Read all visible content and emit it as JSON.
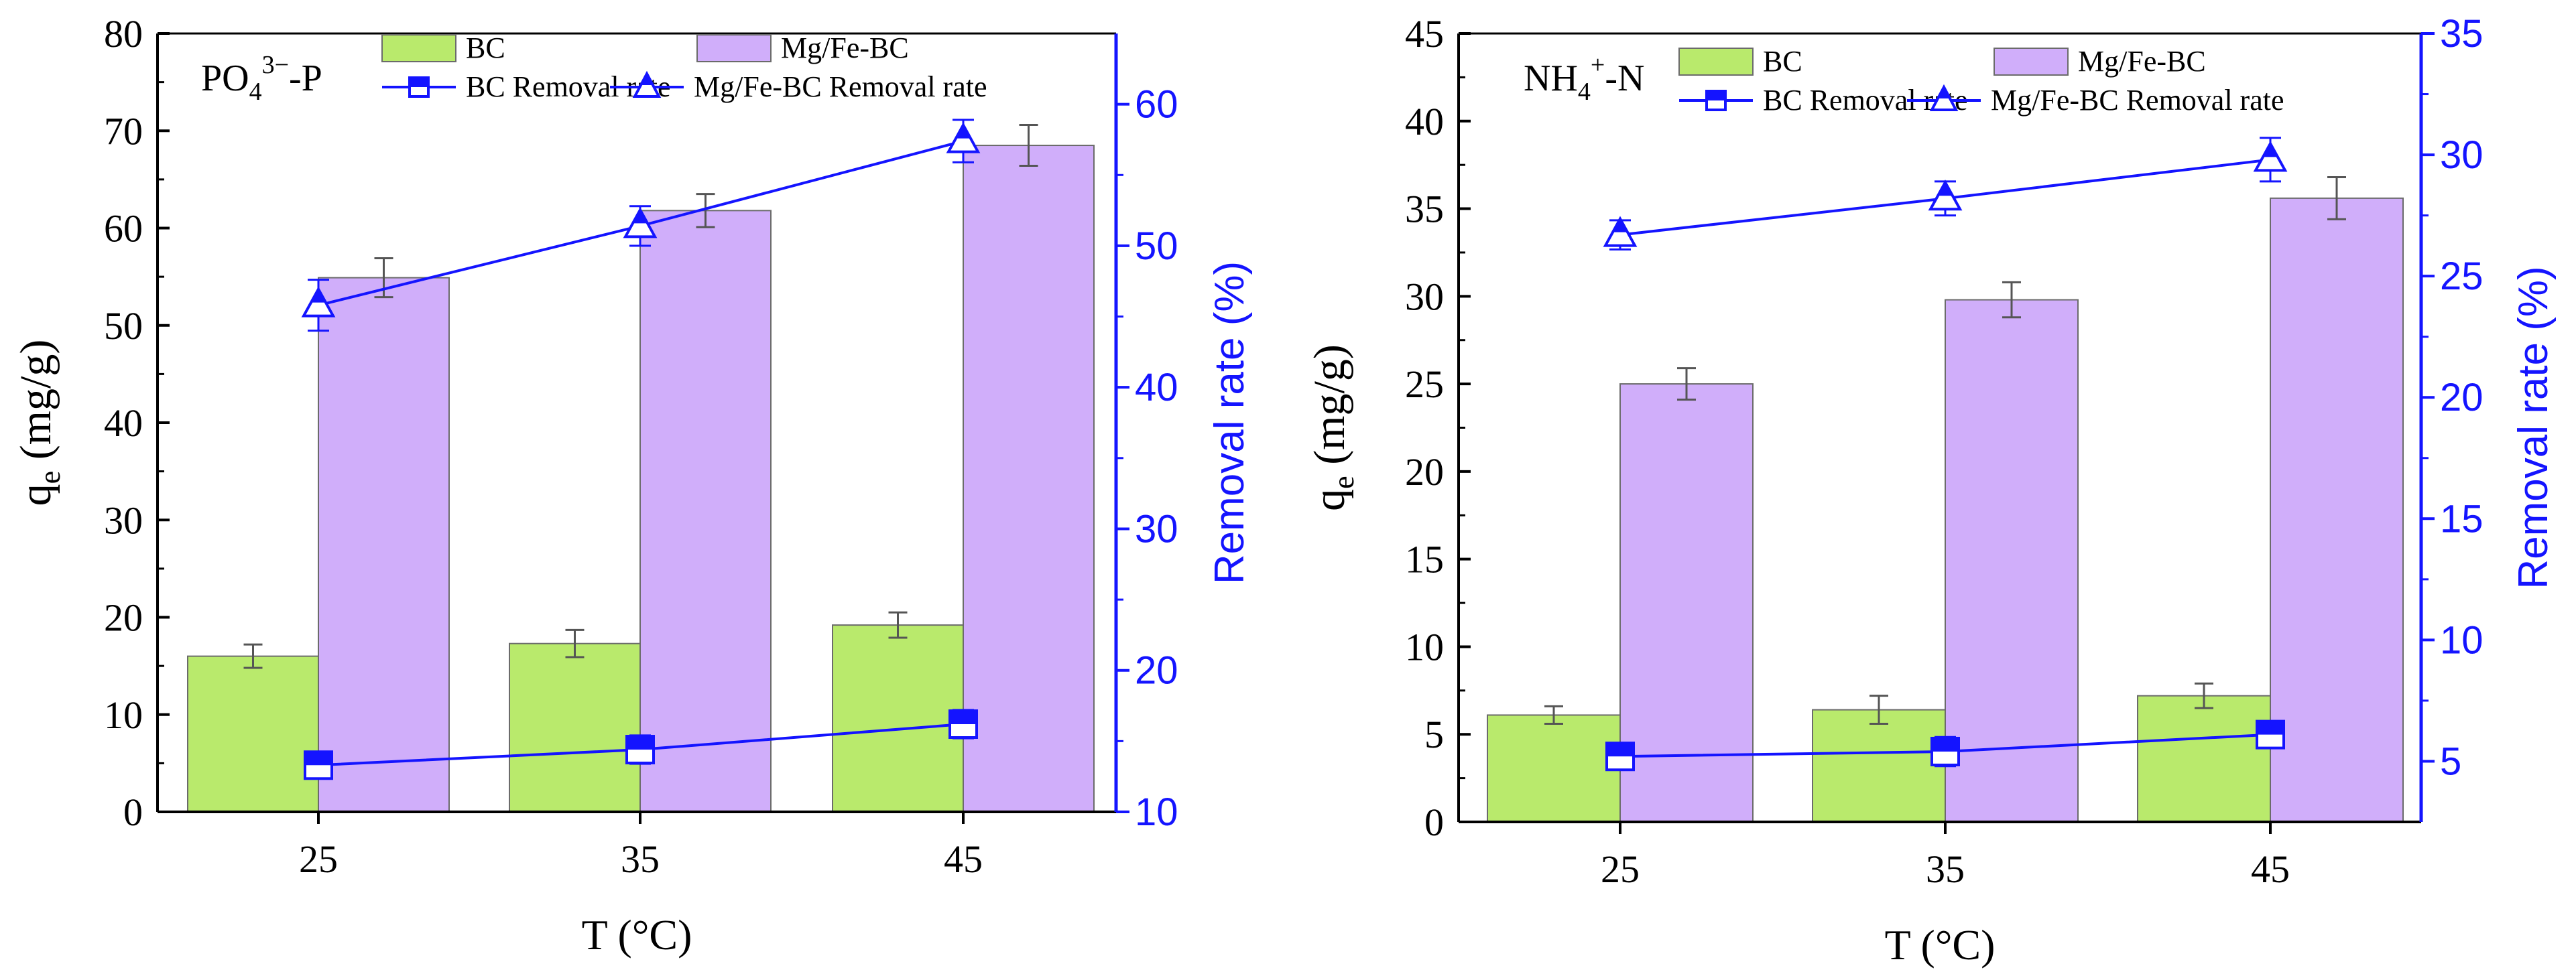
{
  "colors": {
    "bc_fill": "#b9ea6c",
    "mgfe_fill": "#d0aefa",
    "bar_edge": "#6b6b6b",
    "line_blue": "#1414ff",
    "axis_black": "#000000"
  },
  "chart_data": [
    {
      "type": "bar",
      "panel_label_main": "PO",
      "panel_label_sub": "4",
      "panel_label_sup": "3−",
      "panel_label_tail": "-P",
      "xlabel": "T (°C)",
      "ylabel_main": "q",
      "ylabel_sub": "e",
      "ylabel_tail": " (mg/g)",
      "y2label": "Removal rate (%)",
      "categories": [
        "25",
        "35",
        "45"
      ],
      "ylim": [
        0,
        80
      ],
      "yticks": [
        "0",
        "10",
        "20",
        "30",
        "40",
        "50",
        "60",
        "70",
        "80"
      ],
      "y2lim": [
        10,
        65
      ],
      "y2ticks": [
        "10",
        "20",
        "30",
        "40",
        "50",
        "60"
      ],
      "series": [
        {
          "name": "BC",
          "kind": "bar",
          "values": [
            16.0,
            17.3,
            19.2
          ],
          "errors": [
            1.2,
            1.4,
            1.3
          ]
        },
        {
          "name": "Mg/Fe-BC",
          "kind": "bar",
          "values": [
            54.9,
            61.8,
            68.5
          ],
          "errors": [
            2.0,
            1.7,
            2.1
          ]
        },
        {
          "name": "BC Removal rate",
          "kind": "line",
          "axis": "right",
          "marker": "square",
          "values": [
            13.3,
            14.4,
            16.2
          ],
          "errors": [
            0.9,
            1.0,
            1.0
          ]
        },
        {
          "name": "Mg/Fe-BC Removal rate",
          "kind": "line",
          "axis": "right",
          "marker": "triangle",
          "values": [
            45.8,
            51.4,
            57.4
          ],
          "errors": [
            1.8,
            1.4,
            1.5
          ]
        }
      ]
    },
    {
      "type": "bar",
      "panel_label_main": "NH",
      "panel_label_sub": "4",
      "panel_label_sup": "+",
      "panel_label_tail": "-N",
      "xlabel": "T (°C)",
      "ylabel_main": "q",
      "ylabel_sub": "e",
      "ylabel_tail": " (mg/g)",
      "y2label": "Removal rate (%)",
      "categories": [
        "25",
        "35",
        "45"
      ],
      "ylim": [
        0,
        45
      ],
      "yticks": [
        "0",
        "5",
        "10",
        "15",
        "20",
        "25",
        "30",
        "35",
        "40",
        "45"
      ],
      "y2lim": [
        2.5,
        35
      ],
      "y2ticks": [
        "5",
        "10",
        "15",
        "20",
        "25",
        "30",
        "35"
      ],
      "series": [
        {
          "name": "BC",
          "kind": "bar",
          "values": [
            6.1,
            6.4,
            7.2
          ],
          "errors": [
            0.5,
            0.8,
            0.7
          ]
        },
        {
          "name": "Mg/Fe-BC",
          "kind": "bar",
          "values": [
            25.0,
            29.8,
            35.6
          ],
          "errors": [
            0.9,
            1.0,
            1.2
          ]
        },
        {
          "name": "BC Removal rate",
          "kind": "line",
          "axis": "right",
          "marker": "square",
          "values": [
            5.2,
            5.4,
            6.1
          ],
          "errors": [
            0.5,
            0.6,
            0.5
          ]
        },
        {
          "name": "Mg/Fe-BC Removal rate",
          "kind": "line",
          "axis": "right",
          "marker": "triangle",
          "values": [
            26.7,
            28.2,
            29.8
          ],
          "errors": [
            0.6,
            0.7,
            0.9
          ]
        }
      ]
    }
  ]
}
